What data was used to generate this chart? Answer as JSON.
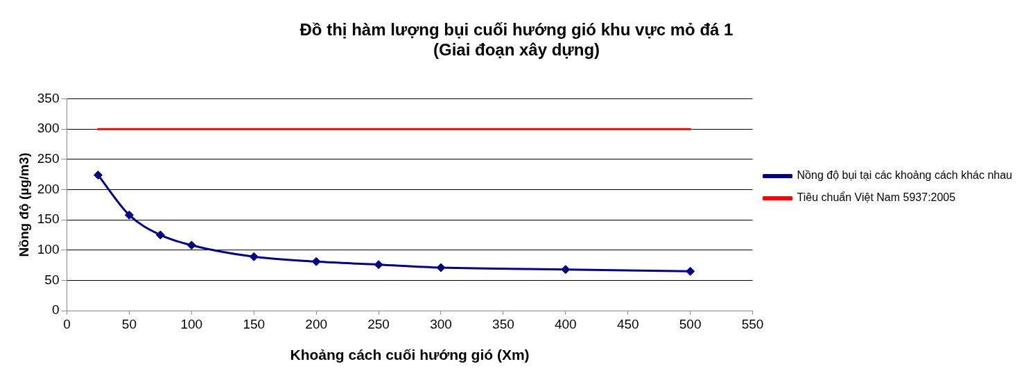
{
  "chart_data": {
    "type": "line",
    "title": [
      "Đồ thị hàm lượng bụi cuối hướng gió khu vực mỏ đá 1",
      "(Giai đoạn xây dựng)"
    ],
    "xlabel": "Khoảng cách cuối hướng gió (Xm)",
    "ylabel": "Nồng độ (µg/m3)",
    "xlim": [
      0,
      550
    ],
    "xticks": [
      0,
      50,
      100,
      150,
      200,
      250,
      300,
      350,
      400,
      450,
      500,
      550
    ],
    "ylim": [
      0,
      350
    ],
    "yticks": [
      0,
      50,
      100,
      150,
      200,
      250,
      300,
      350
    ],
    "grid": "y",
    "legend": "right",
    "series": [
      {
        "name": "Nồng độ bụi tại các khoảng cách khác nhau",
        "color": "#000080",
        "marker": "diamond",
        "x": [
          25,
          50,
          75,
          100,
          150,
          200,
          250,
          300,
          400,
          500
        ],
        "values": [
          224,
          158,
          125,
          108,
          89,
          81,
          76,
          71,
          68,
          65
        ]
      },
      {
        "name": "Tiêu chuẩn Việt Nam 5937:2005",
        "color": "#ff0000",
        "marker": "none",
        "x": [
          25,
          500
        ],
        "values": [
          300,
          300
        ]
      }
    ]
  }
}
